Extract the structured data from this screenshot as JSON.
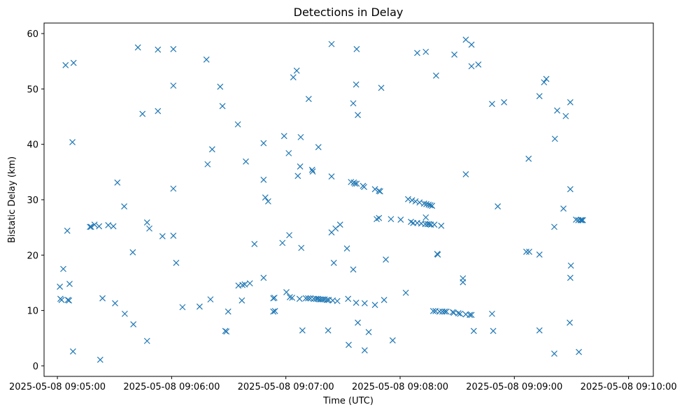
{
  "chart_data": {
    "type": "scatter",
    "title": "Detections in Delay",
    "xlabel": "Time (UTC)",
    "ylabel": "Bistatic Delay (km)",
    "marker": "x",
    "color": "#1f77b4",
    "grid": false,
    "legend": "none",
    "xlim": [
      "2025-05-08 09:04:53",
      "2025-05-08 09:10:13"
    ],
    "ylim": [
      -1.9,
      61.9
    ],
    "xticks": [
      "2025-05-08 09:05:00",
      "2025-05-08 09:06:00",
      "2025-05-08 09:07:00",
      "2025-05-08 09:08:00",
      "2025-05-08 09:09:00",
      "2025-05-08 09:10:00"
    ],
    "yticks": [
      0,
      10,
      20,
      30,
      40,
      50,
      60
    ],
    "points": [
      [
        "2025-05-08 09:05:01.3",
        14.3
      ],
      [
        "2025-05-08 09:05:01.6",
        12.1
      ],
      [
        "2025-05-08 09:05:02.2",
        11.9
      ],
      [
        "2025-05-08 09:05:03.1",
        17.5
      ],
      [
        "2025-05-08 09:05:04.3",
        54.3
      ],
      [
        "2025-05-08 09:05:05.2",
        24.4
      ],
      [
        "2025-05-08 09:05:05.5",
        11.9
      ],
      [
        "2025-05-08 09:05:06.1",
        11.8
      ],
      [
        "2025-05-08 09:05:06.4",
        14.8
      ],
      [
        "2025-05-08 09:05:07.9",
        40.4
      ],
      [
        "2025-05-08 09:05:08.2",
        2.6
      ],
      [
        "2025-05-08 09:05:08.5",
        54.7
      ],
      [
        "2025-05-08 09:05:17.1",
        25.1
      ],
      [
        "2025-05-08 09:05:17.7",
        25.1
      ],
      [
        "2025-05-08 09:05:19.5",
        25.5
      ],
      [
        "2025-05-08 09:05:21.9",
        25.2
      ],
      [
        "2025-05-08 09:05:22.5",
        1.1
      ],
      [
        "2025-05-08 09:05:23.7",
        12.2
      ],
      [
        "2025-05-08 09:05:26.7",
        25.4
      ],
      [
        "2025-05-08 09:05:29.4",
        25.2
      ],
      [
        "2025-05-08 09:05:30.3",
        11.3
      ],
      [
        "2025-05-08 09:05:31.5",
        33.1
      ],
      [
        "2025-05-08 09:05:35.1",
        28.8
      ],
      [
        "2025-05-08 09:05:35.4",
        9.4
      ],
      [
        "2025-05-08 09:05:39.6",
        20.5
      ],
      [
        "2025-05-08 09:05:39.9",
        7.5
      ],
      [
        "2025-05-08 09:05:42.3",
        57.5
      ],
      [
        "2025-05-08 09:05:44.7",
        45.5
      ],
      [
        "2025-05-08 09:05:47.1",
        25.9
      ],
      [
        "2025-05-08 09:05:47.1",
        4.5
      ],
      [
        "2025-05-08 09:05:48.3",
        24.8
      ],
      [
        "2025-05-08 09:05:52.8",
        57.1
      ],
      [
        "2025-05-08 09:05:52.8",
        46.0
      ],
      [
        "2025-05-08 09:05:55.2",
        23.4
      ],
      [
        "2025-05-08 09:06:00.9",
        57.2
      ],
      [
        "2025-05-08 09:06:00.9",
        50.6
      ],
      [
        "2025-05-08 09:06:00.9",
        32.0
      ],
      [
        "2025-05-08 09:06:00.9",
        23.5
      ],
      [
        "2025-05-08 09:06:02.4",
        18.6
      ],
      [
        "2025-05-08 09:06:05.7",
        10.6
      ],
      [
        "2025-05-08 09:06:14.7",
        10.7
      ],
      [
        "2025-05-08 09:06:18.3",
        55.3
      ],
      [
        "2025-05-08 09:06:18.9",
        36.4
      ],
      [
        "2025-05-08 09:06:20.4",
        12.0
      ],
      [
        "2025-05-08 09:06:21.3",
        39.1
      ],
      [
        "2025-05-08 09:06:25.5",
        50.4
      ],
      [
        "2025-05-08 09:06:26.7",
        46.9
      ],
      [
        "2025-05-08 09:06:28.2",
        6.3
      ],
      [
        "2025-05-08 09:06:28.8",
        6.2
      ],
      [
        "2025-05-08 09:06:29.7",
        9.8
      ],
      [
        "2025-05-08 09:06:34.8",
        43.6
      ],
      [
        "2025-05-08 09:06:35.1",
        14.5
      ],
      [
        "2025-05-08 09:06:36.9",
        11.8
      ],
      [
        "2025-05-08 09:06:37.2",
        14.6
      ],
      [
        "2025-05-08 09:06:38.4",
        14.7
      ],
      [
        "2025-05-08 09:06:39.0",
        36.9
      ],
      [
        "2025-05-08 09:06:41.1",
        14.9
      ],
      [
        "2025-05-08 09:06:43.5",
        22.0
      ],
      [
        "2025-05-08 09:06:48.3",
        40.2
      ],
      [
        "2025-05-08 09:06:48.3",
        33.6
      ],
      [
        "2025-05-08 09:06:48.3",
        15.9
      ],
      [
        "2025-05-08 09:06:49.2",
        30.4
      ],
      [
        "2025-05-08 09:06:50.7",
        29.7
      ],
      [
        "2025-05-08 09:06:53.4",
        12.2
      ],
      [
        "2025-05-08 09:06:54.0",
        12.3
      ],
      [
        "2025-05-08 09:06:53.4",
        9.8
      ],
      [
        "2025-05-08 09:06:54.3",
        9.9
      ],
      [
        "2025-05-08 09:06:58.2",
        22.2
      ],
      [
        "2025-05-08 09:06:59.1",
        41.5
      ],
      [
        "2025-05-08 09:07:00.3",
        13.3
      ],
      [
        "2025-05-08 09:07:01.5",
        38.4
      ],
      [
        "2025-05-08 09:07:01.8",
        23.6
      ],
      [
        "2025-05-08 09:07:02.1",
        12.4
      ],
      [
        "2025-05-08 09:07:03.3",
        12.3
      ],
      [
        "2025-05-08 09:07:03.9",
        52.1
      ],
      [
        "2025-05-08 09:07:05.7",
        53.3
      ],
      [
        "2025-05-08 09:07:06.3",
        34.3
      ],
      [
        "2025-05-08 09:07:07.2",
        12.1
      ],
      [
        "2025-05-08 09:07:07.5",
        36.0
      ],
      [
        "2025-05-08 09:07:07.8",
        41.3
      ],
      [
        "2025-05-08 09:07:08.1",
        21.3
      ],
      [
        "2025-05-08 09:07:08.7",
        6.4
      ],
      [
        "2025-05-08 09:07:10.5",
        12.2
      ],
      [
        "2025-05-08 09:07:11.7",
        12.2
      ],
      [
        "2025-05-08 09:07:12.0",
        48.2
      ],
      [
        "2025-05-08 09:07:12.9",
        12.2
      ],
      [
        "2025-05-08 09:07:13.8",
        35.4
      ],
      [
        "2025-05-08 09:07:14.1",
        35.1
      ],
      [
        "2025-05-08 09:07:14.7",
        12.1
      ],
      [
        "2025-05-08 09:07:15.9",
        12.1
      ],
      [
        "2025-05-08 09:07:16.8",
        12.1
      ],
      [
        "2025-05-08 09:07:17.1",
        39.5
      ],
      [
        "2025-05-08 09:07:17.7",
        12.0
      ],
      [
        "2025-05-08 09:07:18.6",
        12.0
      ],
      [
        "2025-05-08 09:07:19.5",
        12.0
      ],
      [
        "2025-05-08 09:07:20.4",
        12.0
      ],
      [
        "2025-05-08 09:07:21.6",
        11.9
      ],
      [
        "2025-05-08 09:07:22.2",
        6.4
      ],
      [
        "2025-05-08 09:07:22.5",
        11.9
      ],
      [
        "2025-05-08 09:07:24.0",
        58.1
      ],
      [
        "2025-05-08 09:07:24.0",
        34.2
      ],
      [
        "2025-05-08 09:07:24.0",
        24.1
      ],
      [
        "2025-05-08 09:07:24.6",
        11.8
      ],
      [
        "2025-05-08 09:07:25.2",
        18.6
      ],
      [
        "2025-05-08 09:07:26.1",
        24.8
      ],
      [
        "2025-05-08 09:07:27.0",
        11.7
      ],
      [
        "2025-05-08 09:07:28.5",
        25.5
      ],
      [
        "2025-05-08 09:07:32.1",
        21.2
      ],
      [
        "2025-05-08 09:07:32.7",
        12.1
      ],
      [
        "2025-05-08 09:07:33.0",
        3.8
      ],
      [
        "2025-05-08 09:07:34.2",
        33.2
      ],
      [
        "2025-05-08 09:07:35.4",
        47.4
      ],
      [
        "2025-05-08 09:07:35.4",
        17.4
      ],
      [
        "2025-05-08 09:07:35.7",
        33.1
      ],
      [
        "2025-05-08 09:07:36.3",
        32.9
      ],
      [
        "2025-05-08 09:07:37.2",
        57.2
      ],
      [
        "2025-05-08 09:07:36.9",
        50.8
      ],
      [
        "2025-05-08 09:07:36.9",
        11.4
      ],
      [
        "2025-05-08 09:07:37.2",
        32.9
      ],
      [
        "2025-05-08 09:07:37.8",
        45.3
      ],
      [
        "2025-05-08 09:07:37.8",
        7.8
      ],
      [
        "2025-05-08 09:07:40.5",
        32.5
      ],
      [
        "2025-05-08 09:07:41.1",
        32.3
      ],
      [
        "2025-05-08 09:07:41.4",
        11.3
      ],
      [
        "2025-05-08 09:07:41.4",
        2.8
      ],
      [
        "2025-05-08 09:07:43.5",
        6.1
      ],
      [
        "2025-05-08 09:07:46.8",
        31.9
      ],
      [
        "2025-05-08 09:07:46.8",
        11.0
      ],
      [
        "2025-05-08 09:07:47.7",
        26.5
      ],
      [
        "2025-05-08 09:07:48.9",
        31.6
      ],
      [
        "2025-05-08 09:07:48.9",
        26.7
      ],
      [
        "2025-05-08 09:07:49.5",
        31.5
      ],
      [
        "2025-05-08 09:07:50.1",
        50.2
      ],
      [
        "2025-05-08 09:07:51.6",
        11.9
      ],
      [
        "2025-05-08 09:07:52.5",
        19.2
      ],
      [
        "2025-05-08 09:07:55.2",
        26.5
      ],
      [
        "2025-05-08 09:07:56.1",
        4.6
      ],
      [
        "2025-05-08 09:08:00.3",
        26.4
      ],
      [
        "2025-05-08 09:08:03.0",
        13.2
      ],
      [
        "2025-05-08 09:08:04.2",
        30.1
      ],
      [
        "2025-05-08 09:08:05.7",
        26.0
      ],
      [
        "2025-05-08 09:08:06.3",
        29.9
      ],
      [
        "2025-05-08 09:08:06.9",
        25.8
      ],
      [
        "2025-05-08 09:08:08.1",
        29.7
      ],
      [
        "2025-05-08 09:08:09.0",
        56.5
      ],
      [
        "2025-05-08 09:08:09.0",
        25.8
      ],
      [
        "2025-05-08 09:08:10.2",
        29.5
      ],
      [
        "2025-05-08 09:08:11.1",
        25.7
      ],
      [
        "2025-05-08 09:08:12.6",
        29.3
      ],
      [
        "2025-05-08 09:08:13.2",
        25.6
      ],
      [
        "2025-05-08 09:08:13.5",
        56.7
      ],
      [
        "2025-05-08 09:08:13.5",
        26.8
      ],
      [
        "2025-05-08 09:08:13.8",
        29.2
      ],
      [
        "2025-05-08 09:08:14.4",
        25.6
      ],
      [
        "2025-05-08 09:08:15.0",
        29.1
      ],
      [
        "2025-05-08 09:08:15.3",
        25.6
      ],
      [
        "2025-05-08 09:08:15.9",
        29.0
      ],
      [
        "2025-05-08 09:08:16.2",
        25.5
      ],
      [
        "2025-05-08 09:08:16.8",
        28.9
      ],
      [
        "2025-05-08 09:08:17.4",
        9.9
      ],
      [
        "2025-05-08 09:08:18.0",
        25.5
      ],
      [
        "2025-05-08 09:08:18.6",
        9.9
      ],
      [
        "2025-05-08 09:08:18.9",
        52.4
      ],
      [
        "2025-05-08 09:08:19.5",
        20.2
      ],
      [
        "2025-05-08 09:08:19.8",
        20.1
      ],
      [
        "2025-05-08 09:08:20.7",
        9.8
      ],
      [
        "2025-05-08 09:08:21.6",
        25.3
      ],
      [
        "2025-05-08 09:08:22.2",
        9.8
      ],
      [
        "2025-05-08 09:08:23.4",
        9.8
      ],
      [
        "2025-05-08 09:08:24.3",
        9.8
      ],
      [
        "2025-05-08 09:08:27.6",
        9.7
      ],
      [
        "2025-05-08 09:08:28.2",
        9.6
      ],
      [
        "2025-05-08 09:08:28.5",
        56.2
      ],
      [
        "2025-05-08 09:08:30.6",
        9.5
      ],
      [
        "2025-05-08 09:08:31.5",
        9.4
      ],
      [
        "2025-05-08 09:08:33.0",
        15.8
      ],
      [
        "2025-05-08 09:08:33.0",
        15.1
      ],
      [
        "2025-05-08 09:08:34.5",
        58.9
      ],
      [
        "2025-05-08 09:08:34.5",
        34.6
      ],
      [
        "2025-05-08 09:08:34.5",
        9.3
      ],
      [
        "2025-05-08 09:08:36.6",
        9.2
      ],
      [
        "2025-05-08 09:08:37.5",
        58.0
      ],
      [
        "2025-05-08 09:08:37.5",
        54.1
      ],
      [
        "2025-05-08 09:08:37.5",
        9.2
      ],
      [
        "2025-05-08 09:08:38.7",
        6.3
      ],
      [
        "2025-05-08 09:08:41.1",
        54.4
      ],
      [
        "2025-05-08 09:08:48.3",
        47.3
      ],
      [
        "2025-05-08 09:08:48.3",
        9.4
      ],
      [
        "2025-05-08 09:08:48.9",
        6.3
      ],
      [
        "2025-05-08 09:08:51.3",
        28.8
      ],
      [
        "2025-05-08 09:08:54.6",
        47.6
      ],
      [
        "2025-05-08 09:09:06.3",
        20.6
      ],
      [
        "2025-05-08 09:09:07.8",
        20.6
      ],
      [
        "2025-05-08 09:09:07.5",
        37.4
      ],
      [
        "2025-05-08 09:09:13.2",
        48.7
      ],
      [
        "2025-05-08 09:09:13.2",
        20.1
      ],
      [
        "2025-05-08 09:09:13.2",
        6.4
      ],
      [
        "2025-05-08 09:09:15.6",
        51.2
      ],
      [
        "2025-05-08 09:09:16.8",
        51.8
      ],
      [
        "2025-05-08 09:09:21.0",
        25.1
      ],
      [
        "2025-05-08 09:09:21.3",
        41.0
      ],
      [
        "2025-05-08 09:09:21.0",
        2.2
      ],
      [
        "2025-05-08 09:09:22.5",
        46.1
      ],
      [
        "2025-05-08 09:09:25.8",
        28.4
      ],
      [
        "2025-05-08 09:09:27.0",
        45.1
      ],
      [
        "2025-05-08 09:09:29.1",
        7.8
      ],
      [
        "2025-05-08 09:09:29.4",
        15.9
      ],
      [
        "2025-05-08 09:09:29.7",
        18.1
      ],
      [
        "2025-05-08 09:09:29.4",
        31.9
      ],
      [
        "2025-05-08 09:09:29.4",
        47.6
      ],
      [
        "2025-05-08 09:09:32.4",
        26.4
      ],
      [
        "2025-05-08 09:09:33.6",
        26.3
      ],
      [
        "2025-05-08 09:09:34.8",
        26.3
      ],
      [
        "2025-05-08 09:09:35.4",
        26.3
      ],
      [
        "2025-05-08 09:09:33.9",
        2.5
      ],
      [
        "2025-05-08 09:09:36.0",
        26.3
      ]
    ]
  }
}
